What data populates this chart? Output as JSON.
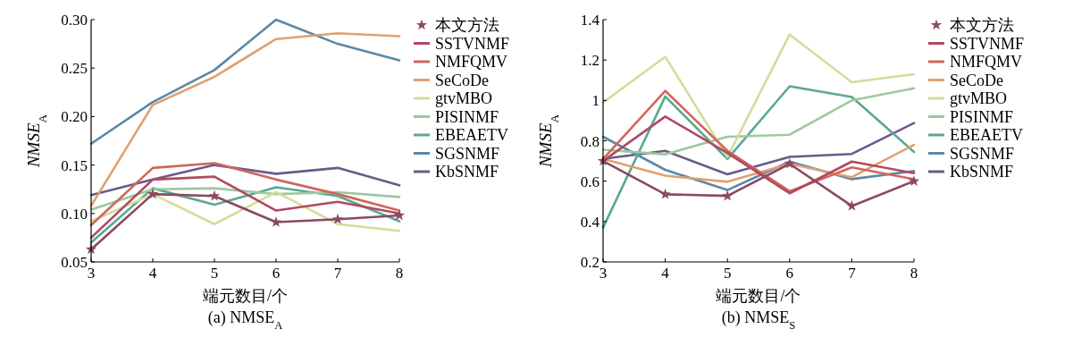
{
  "chart_data": [
    {
      "type": "line",
      "title": "(a) NMSE$_{A}$",
      "xlabel": "端元数目/个",
      "ylabel": "NMSE$_{A}$",
      "x": [
        3,
        4,
        5,
        6,
        7,
        8
      ],
      "xlim": [
        3,
        8
      ],
      "xticks": [
        3,
        4,
        5,
        6,
        7,
        8
      ],
      "ylim": [
        0.05,
        0.3
      ],
      "yticks": [
        {
          "value": 0.05,
          "label": "0.05"
        },
        {
          "value": 0.1,
          "label": "0.10"
        },
        {
          "value": 0.15,
          "label": "0.15"
        },
        {
          "value": 0.2,
          "label": "0.20"
        },
        {
          "value": 0.25,
          "label": "0.25"
        },
        {
          "value": 0.3,
          "label": "0.30"
        }
      ],
      "legend": "right",
      "grid": false,
      "series": [
        {
          "name": "本文方法",
          "color": "#8b4a5e",
          "marker": "star",
          "values": [
            0.063,
            0.12,
            0.118,
            0.091,
            0.094,
            0.098
          ]
        },
        {
          "name": "SSTVNMF",
          "color": "#b04a60",
          "values": [
            0.075,
            0.135,
            0.138,
            0.103,
            0.112,
            0.1
          ]
        },
        {
          "name": "NMFQMV",
          "color": "#d0665a",
          "values": [
            0.088,
            0.147,
            0.152,
            0.135,
            0.12,
            0.103
          ]
        },
        {
          "name": "SeCoDe",
          "color": "#e0a070",
          "values": [
            0.108,
            0.212,
            0.241,
            0.28,
            0.286,
            0.283
          ]
        },
        {
          "name": "gtvMBO",
          "color": "#d6dc9a",
          "values": [
            0.092,
            0.12,
            0.089,
            0.122,
            0.089,
            0.082
          ]
        },
        {
          "name": "PISINMF",
          "color": "#9cc8a0",
          "values": [
            0.104,
            0.125,
            0.126,
            0.12,
            0.122,
            0.117
          ]
        },
        {
          "name": "EBEAETV",
          "color": "#5aa890",
          "values": [
            0.07,
            0.126,
            0.109,
            0.127,
            0.118,
            0.092
          ]
        },
        {
          "name": "SGSNMF",
          "color": "#5a88a8",
          "values": [
            0.172,
            0.215,
            0.248,
            0.3,
            0.275,
            0.258
          ]
        },
        {
          "name": "KbSNMF",
          "color": "#6a5a8a",
          "values": [
            0.119,
            0.135,
            0.15,
            0.141,
            0.147,
            0.129
          ]
        }
      ]
    },
    {
      "type": "line",
      "title": "(b) NMSE$_{S}$",
      "xlabel": "端元数目/个",
      "ylabel": "NMSE$_{A}$",
      "x": [
        3,
        4,
        5,
        6,
        7,
        8
      ],
      "xlim": [
        3,
        8
      ],
      "xticks": [
        3,
        4,
        5,
        6,
        7,
        8
      ],
      "ylim": [
        0.2,
        1.4
      ],
      "yticks": [
        0.2,
        0.4,
        0.6,
        0.8,
        1,
        1.2,
        1.4
      ],
      "legend": "right",
      "grid": false,
      "series": [
        {
          "name": "本文方法",
          "color": "#8b4a5e",
          "marker": "star",
          "values": [
            0.7,
            0.535,
            0.527,
            0.686,
            0.477,
            0.6
          ]
        },
        {
          "name": "SSTVNMF",
          "color": "#b04a60",
          "values": [
            0.7,
            0.92,
            0.74,
            0.54,
            0.697,
            0.64
          ]
        },
        {
          "name": "NMFQMV",
          "color": "#d0665a",
          "values": [
            0.71,
            1.047,
            0.75,
            0.55,
            0.668,
            0.61
          ]
        },
        {
          "name": "SeCoDe",
          "color": "#e0a070",
          "values": [
            0.71,
            0.627,
            0.597,
            0.686,
            0.62,
            0.78
          ]
        },
        {
          "name": "gtvMBO",
          "color": "#d6dc9a",
          "values": [
            0.99,
            1.216,
            0.72,
            1.326,
            1.09,
            1.13
          ]
        },
        {
          "name": "PISINMF",
          "color": "#9cc8a0",
          "values": [
            0.756,
            0.733,
            0.82,
            0.83,
            1.0,
            1.06
          ]
        },
        {
          "name": "EBEAETV",
          "color": "#5aa890",
          "values": [
            0.37,
            1.02,
            0.71,
            1.07,
            1.017,
            0.745
          ]
        },
        {
          "name": "SGSNMF",
          "color": "#5a88a8",
          "values": [
            0.82,
            0.656,
            0.556,
            0.697,
            0.61,
            0.65
          ]
        },
        {
          "name": "KbSNMF",
          "color": "#6a5a8a",
          "values": [
            0.71,
            0.75,
            0.634,
            0.72,
            0.735,
            0.888
          ]
        }
      ]
    }
  ]
}
